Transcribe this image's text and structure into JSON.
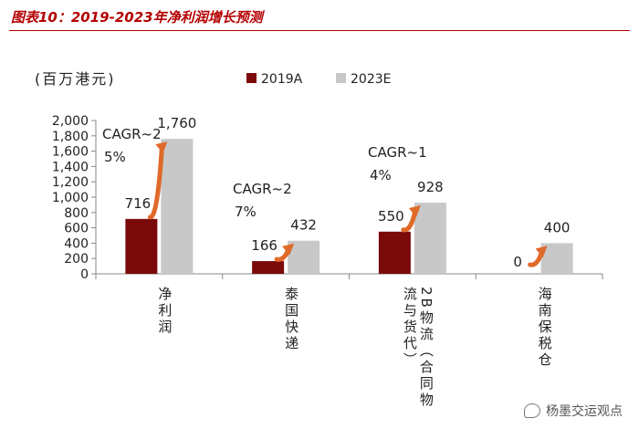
{
  "page_title": "图表10：2019-2023年净利润增长预测",
  "watermark": "杨墨交运观点",
  "chart_data": {
    "type": "bar",
    "unit_label": "(百万港元)",
    "categories": [
      "净利润",
      "泰国快递",
      "2B物流（合同物流与货代）",
      "海南保税仓"
    ],
    "category_tick_labels": [
      "净利润",
      "泰国快递",
      "2B物流（合同物\n流与货代）",
      "海南保税仓"
    ],
    "series": [
      {
        "name": "2019A",
        "values": [
          716,
          166,
          550,
          0
        ],
        "labels": [
          "716",
          "166",
          "550",
          "0"
        ],
        "color": "#7b0a0a"
      },
      {
        "name": "2023E",
        "values": [
          1760,
          432,
          928,
          400
        ],
        "labels": [
          "1,760",
          "432",
          "928",
          "400"
        ],
        "color": "#c8c8c8"
      }
    ],
    "cagr_annotations": [
      {
        "category_index": 0,
        "line1": "CAGR~2",
        "line2": "5%"
      },
      {
        "category_index": 1,
        "line1": "CAGR~2",
        "line2": "7%"
      },
      {
        "category_index": 2,
        "line1": "CAGR~1",
        "line2": "4%"
      }
    ],
    "yticks": [
      "0",
      "200",
      "400",
      "600",
      "800",
      "1,000",
      "1,200",
      "1,400",
      "1,600",
      "1,800",
      "2,000"
    ],
    "ylim": [
      0,
      2000
    ],
    "arrow_color": "#e06a2a",
    "legend_position": "top"
  }
}
